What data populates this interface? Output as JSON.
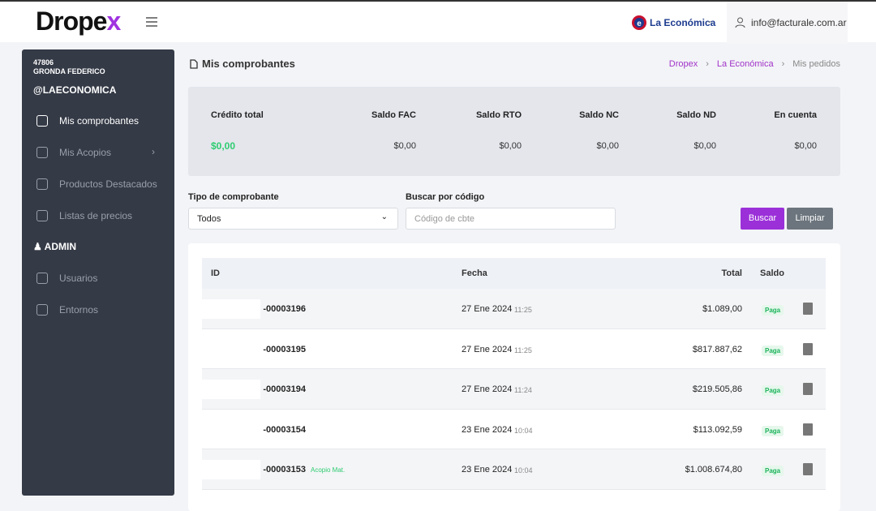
{
  "header": {
    "logo": "Dropex",
    "company": "La Económica",
    "user": "info@facturale.com.ar"
  },
  "sidebar": {
    "account_id": "47806",
    "account_name": "GRONDA FEDERICO",
    "handle": "@LAECONOMICA",
    "menu": [
      "Mis comprobantes",
      "Mis Acopios",
      "Productos Destacados",
      "Listas de precios"
    ],
    "admin_title": "ADMIN",
    "admin_menu": [
      "Usuarios",
      "Entornos"
    ]
  },
  "page": {
    "title": "Mis comprobantes",
    "breadcrumb": [
      "Dropex",
      "La Económica",
      "Mis pedidos"
    ]
  },
  "summary": {
    "labels": [
      "Crédito total",
      "Saldo FAC",
      "Saldo RTO",
      "Saldo NC",
      "Saldo ND",
      "En cuenta"
    ],
    "values": [
      "$0,00",
      "$0,00",
      "$0,00",
      "$0,00",
      "$0,00",
      "$0,00"
    ]
  },
  "filters": {
    "type_label": "Tipo de comprobante",
    "type_value": "Todos",
    "code_label": "Buscar por código",
    "code_placeholder": "Código de cbte",
    "search": "Buscar",
    "clear": "Limpiar"
  },
  "table": {
    "columns": [
      "ID",
      "Fecha",
      "Total",
      "Saldo"
    ],
    "rows": [
      {
        "id": "-00003196",
        "date": "27 Ene 2024",
        "time": "11:25",
        "total": "$1.089,00",
        "status": "Paga"
      },
      {
        "id": "-00003195",
        "date": "27 Ene 2024",
        "time": "11:25",
        "total": "$817.887,62",
        "status": "Paga"
      },
      {
        "id": "-00003194",
        "date": "27 Ene 2024",
        "time": "11:24",
        "total": "$219.505,86",
        "status": "Paga"
      },
      {
        "id": "-00003154",
        "date": "23 Ene 2024",
        "time": "10:04",
        "total": "$113.092,59",
        "status": "Paga"
      },
      {
        "id": "-00003153",
        "tag": "Acopio Mat.",
        "date": "23 Ene 2024",
        "time": "10:04",
        "total": "$1.008.674,80",
        "status": "Paga"
      }
    ]
  }
}
